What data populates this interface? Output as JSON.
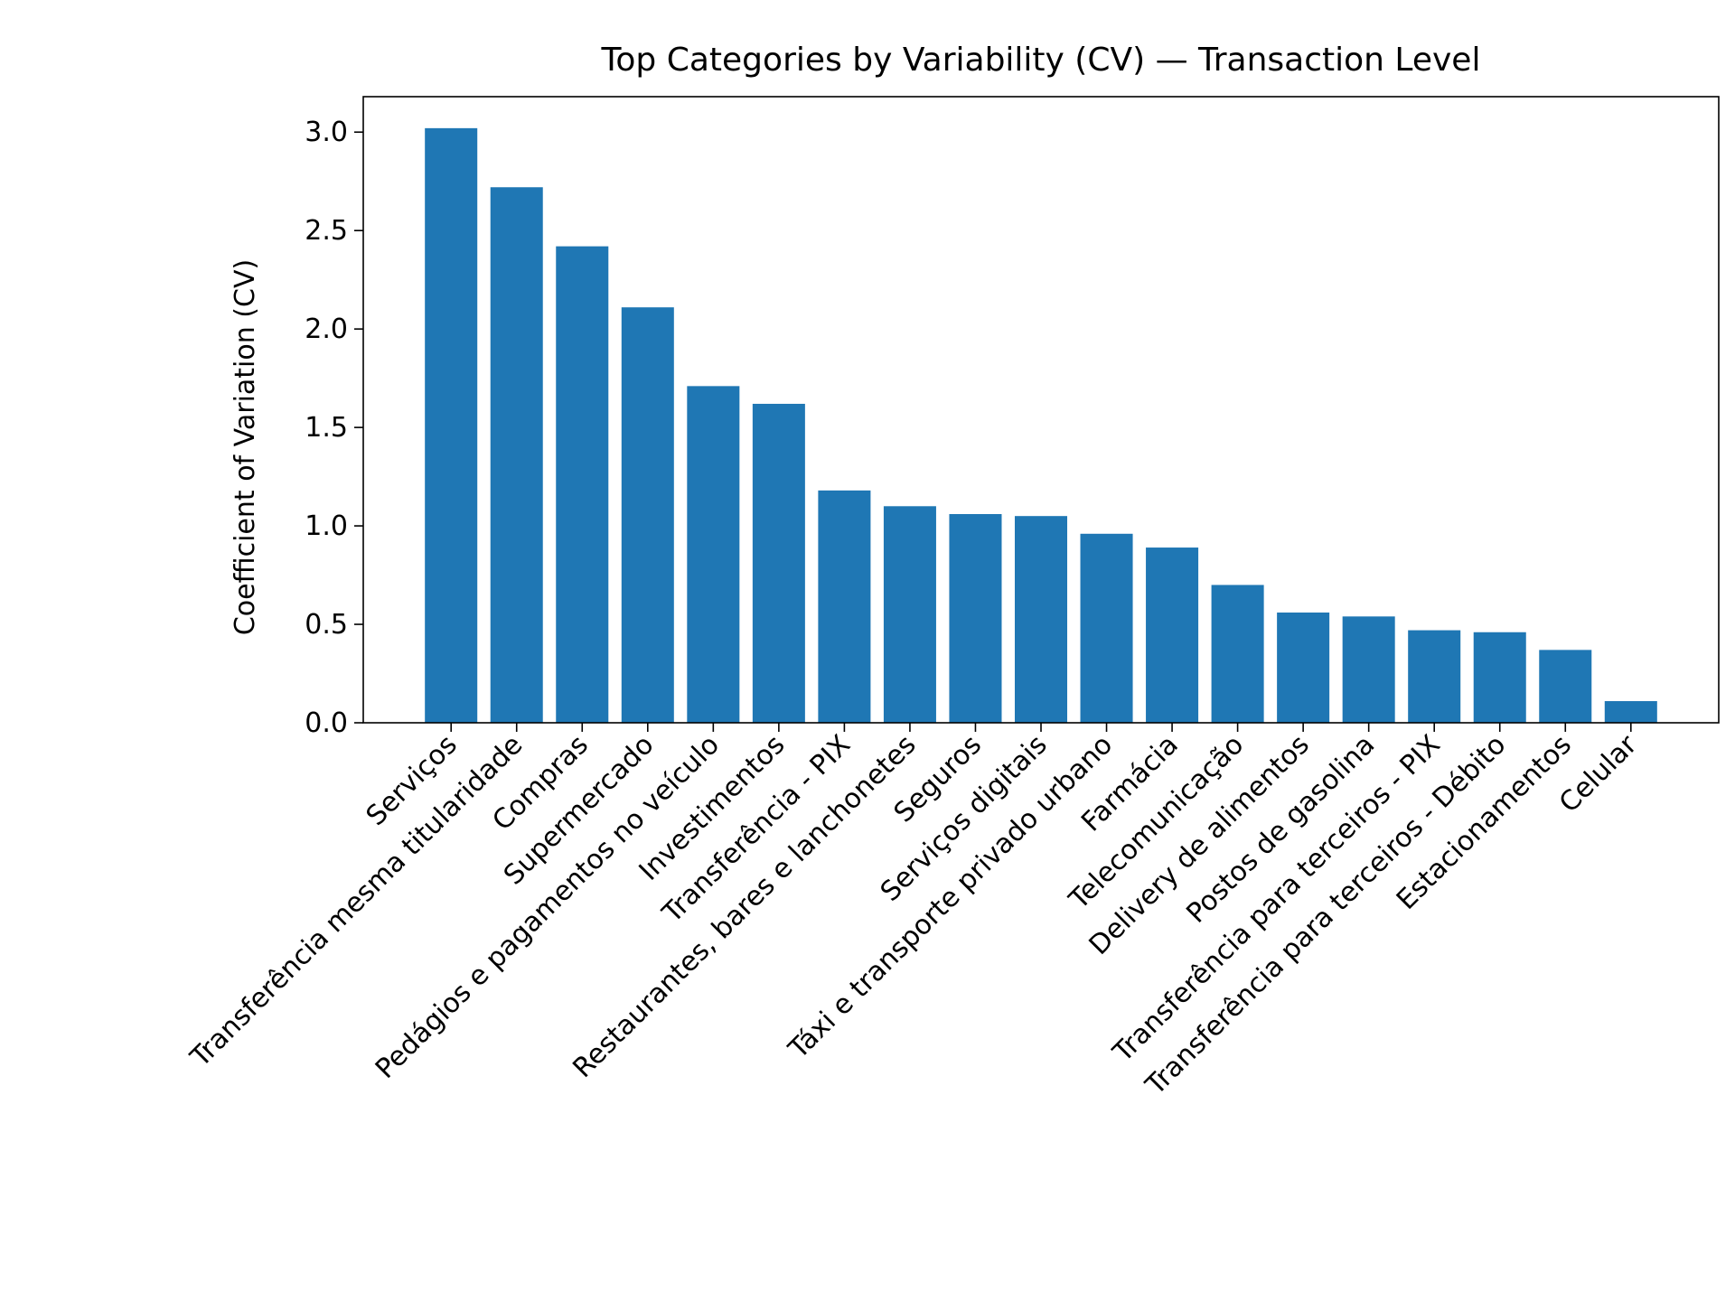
{
  "chart_data": {
    "type": "bar",
    "title": "Top Categories by Variability (CV) — Transaction Level",
    "xlabel": "",
    "ylabel": "Coefficient of Variation (CV)",
    "ylim": [
      0,
      3.18
    ],
    "yticks": [
      0.0,
      0.5,
      1.0,
      1.5,
      2.0,
      2.5,
      3.0
    ],
    "ytick_labels": [
      "0.0",
      "0.5",
      "1.0",
      "1.5",
      "2.0",
      "2.5",
      "3.0"
    ],
    "grid": false,
    "bar_color": "#1f77b4",
    "categories": [
      "Serviços",
      "Transferência mesma titularidade",
      "Compras",
      "Supermercado",
      "Pedágios e pagamentos no veículo",
      "Investimentos",
      "Transferência - PIX",
      "Restaurantes, bares e lanchonetes",
      "Seguros",
      "Serviços digitais",
      "Táxi e transporte privado urbano",
      "Farmácia",
      "Telecomunicação",
      "Delivery de alimentos",
      "Postos de gasolina",
      "Transferência para terceiros - PIX",
      "Transferência para terceiros - Débito",
      "Estacionamentos",
      "Celular"
    ],
    "values": [
      3.02,
      2.72,
      2.42,
      2.11,
      1.71,
      1.62,
      1.18,
      1.1,
      1.06,
      1.05,
      0.96,
      0.89,
      0.7,
      0.56,
      0.54,
      0.47,
      0.46,
      0.37,
      0.11
    ]
  }
}
